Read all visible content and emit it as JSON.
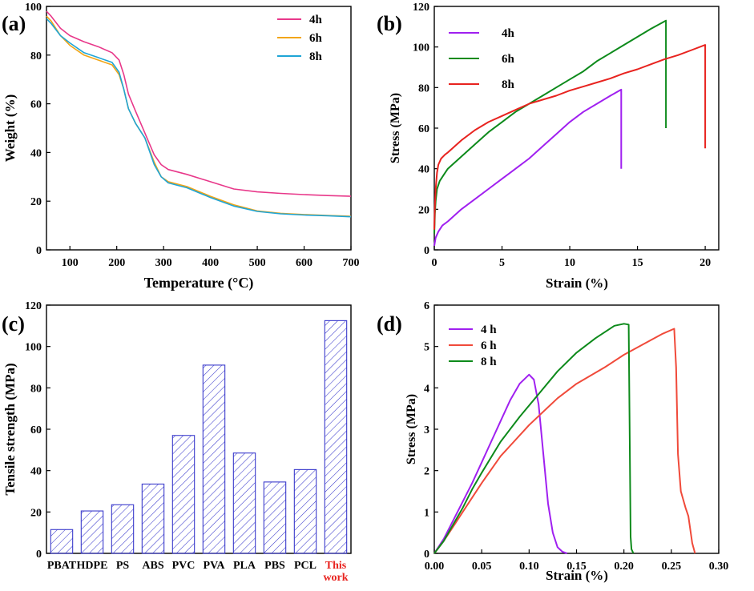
{
  "chart_data": [
    {
      "panel": "(a)",
      "type": "line",
      "xlabel": "Temperature (°C)",
      "ylabel": "Weight (%)",
      "xlim": [
        50,
        700
      ],
      "ylim": [
        0,
        100
      ],
      "xticks": [
        100,
        200,
        300,
        400,
        500,
        600,
        700
      ],
      "yticks": [
        0,
        20,
        40,
        60,
        80,
        100
      ],
      "legend_position": "top-right",
      "series": [
        {
          "name": "4h",
          "color": "#e8388a",
          "x": [
            50,
            60,
            80,
            100,
            130,
            160,
            190,
            205,
            215,
            225,
            240,
            260,
            280,
            295,
            310,
            350,
            400,
            450,
            500,
            550,
            600,
            650,
            700
          ],
          "y": [
            98,
            96,
            91,
            88,
            85.5,
            83.5,
            81,
            78,
            72,
            64,
            57,
            48,
            39,
            35,
            33,
            31,
            28,
            25,
            23.8,
            23.2,
            22.7,
            22.3,
            22
          ]
        },
        {
          "name": "6h",
          "color": "#f2a516",
          "x": [
            50,
            60,
            80,
            100,
            130,
            160,
            190,
            205,
            215,
            225,
            240,
            260,
            280,
            295,
            310,
            350,
            400,
            450,
            500,
            550,
            600,
            650,
            700
          ],
          "y": [
            96,
            94,
            88,
            84,
            80,
            78,
            76,
            72,
            66,
            58,
            52,
            46,
            36,
            30,
            28,
            26,
            22,
            18.5,
            16,
            15,
            14.5,
            14.1,
            13.8
          ]
        },
        {
          "name": "8h",
          "color": "#1fa5d6",
          "x": [
            50,
            60,
            80,
            100,
            130,
            160,
            190,
            205,
            215,
            225,
            240,
            260,
            280,
            295,
            310,
            350,
            400,
            450,
            500,
            550,
            600,
            650,
            700
          ],
          "y": [
            95,
            93,
            88,
            85,
            81,
            79,
            77,
            73,
            66,
            58,
            52,
            46,
            35,
            30,
            27.5,
            25.5,
            21.5,
            18,
            15.8,
            14.8,
            14.3,
            14,
            13.6
          ]
        }
      ]
    },
    {
      "panel": "(b)",
      "type": "line",
      "xlabel": "Strain (%)",
      "ylabel": "Stress (MPa)",
      "xlim": [
        0,
        21
      ],
      "ylim": [
        0,
        120
      ],
      "xticks": [
        0,
        5,
        10,
        15,
        20
      ],
      "yticks": [
        0,
        20,
        40,
        60,
        80,
        100,
        120
      ],
      "legend_position": "top-left",
      "series": [
        {
          "name": "4h",
          "color": "#a020f0",
          "x": [
            0,
            0.1,
            0.3,
            0.6,
            1,
            2,
            3,
            4,
            5,
            6,
            7,
            8,
            9,
            10,
            11,
            12,
            13,
            13.8,
            13.8
          ],
          "y": [
            2,
            6,
            9,
            12,
            14,
            20,
            25,
            30,
            35,
            40,
            45,
            51,
            57,
            63,
            68,
            72,
            76,
            79,
            40
          ]
        },
        {
          "name": "6h",
          "color": "#0d8a1b",
          "x": [
            0,
            0.05,
            0.1,
            0.2,
            0.4,
            0.7,
            1,
            2,
            3,
            4,
            5,
            6,
            7,
            8,
            9,
            10,
            11,
            12,
            13,
            14,
            15,
            16,
            17.1,
            17.1
          ],
          "y": [
            8,
            18,
            24,
            30,
            34,
            37,
            40,
            46,
            52,
            58,
            63,
            68,
            72,
            76,
            80,
            84,
            88,
            93,
            97,
            101,
            105,
            109,
            113,
            60
          ]
        },
        {
          "name": "8h",
          "color": "#e8231f",
          "x": [
            0,
            0.05,
            0.1,
            0.2,
            0.3,
            0.5,
            0.8,
            1,
            2,
            3,
            4,
            5,
            6,
            7,
            8,
            9,
            10,
            11,
            12,
            13,
            14,
            15,
            16,
            17,
            18,
            19,
            20,
            20
          ],
          "y": [
            10,
            22,
            30,
            38,
            42,
            45,
            47,
            48,
            54,
            59,
            63,
            66,
            69,
            72,
            74,
            76,
            78.5,
            80.5,
            82.5,
            84.5,
            87,
            89,
            91.5,
            94,
            96,
            98.5,
            101,
            50
          ]
        }
      ]
    },
    {
      "panel": "(c)",
      "type": "bar",
      "ylabel": "Tensile strength (MPa)",
      "ylim": [
        0,
        120
      ],
      "yticks": [
        0,
        20,
        40,
        60,
        80,
        100,
        120
      ],
      "bar_color": "#3a3acc",
      "categories": [
        "PBAT",
        "HDPE",
        "PS",
        "ABS",
        "PVC",
        "PVA",
        "PLA",
        "PBS",
        "PCL",
        "This work"
      ],
      "values": [
        11.5,
        20.5,
        23.5,
        33.5,
        57,
        91,
        48.5,
        34.5,
        40.5,
        112.5
      ],
      "highlight": {
        "category": "This work",
        "color": "#e8231f"
      }
    },
    {
      "panel": "(d)",
      "type": "line",
      "xlabel": "Strain (%)",
      "ylabel": "Stress (MPa)",
      "xlim": [
        0,
        0.3
      ],
      "ylim": [
        0,
        6
      ],
      "xticks": [
        0.0,
        0.05,
        0.1,
        0.15,
        0.2,
        0.25,
        0.3
      ],
      "yticks": [
        0,
        1,
        2,
        3,
        4,
        5,
        6
      ],
      "legend_position": "top-left",
      "series": [
        {
          "name": "4 h",
          "color": "#a020f0",
          "x": [
            0,
            0.01,
            0.02,
            0.03,
            0.04,
            0.05,
            0.06,
            0.07,
            0.08,
            0.09,
            0.1,
            0.105,
            0.11,
            0.115,
            0.12,
            0.125,
            0.13,
            0.135,
            0.14
          ],
          "y": [
            0,
            0.35,
            0.8,
            1.25,
            1.7,
            2.2,
            2.7,
            3.2,
            3.7,
            4.1,
            4.32,
            4.2,
            3.6,
            2.4,
            1.2,
            0.5,
            0.15,
            0.04,
            0
          ]
        },
        {
          "name": "6 h",
          "color": "#f04a3a",
          "x": [
            0,
            0.01,
            0.02,
            0.03,
            0.05,
            0.07,
            0.1,
            0.13,
            0.15,
            0.18,
            0.2,
            0.22,
            0.24,
            0.253,
            0.255,
            0.257,
            0.26,
            0.265,
            0.268,
            0.272,
            0.275
          ],
          "y": [
            0,
            0.3,
            0.65,
            1.0,
            1.7,
            2.35,
            3.1,
            3.75,
            4.1,
            4.5,
            4.8,
            5.05,
            5.3,
            5.43,
            4.5,
            2.4,
            1.5,
            1.1,
            0.9,
            0.25,
            0
          ]
        },
        {
          "name": "8 h",
          "color": "#0d8a1b",
          "x": [
            0,
            0.01,
            0.02,
            0.03,
            0.04,
            0.05,
            0.07,
            0.09,
            0.11,
            0.13,
            0.15,
            0.17,
            0.18,
            0.19,
            0.2,
            0.205,
            0.206,
            0.207,
            0.208,
            0.21
          ],
          "y": [
            0,
            0.3,
            0.7,
            1.1,
            1.55,
            1.95,
            2.7,
            3.3,
            3.85,
            4.4,
            4.85,
            5.2,
            5.35,
            5.5,
            5.55,
            5.53,
            3.0,
            0.4,
            0.1,
            0
          ]
        }
      ]
    }
  ]
}
